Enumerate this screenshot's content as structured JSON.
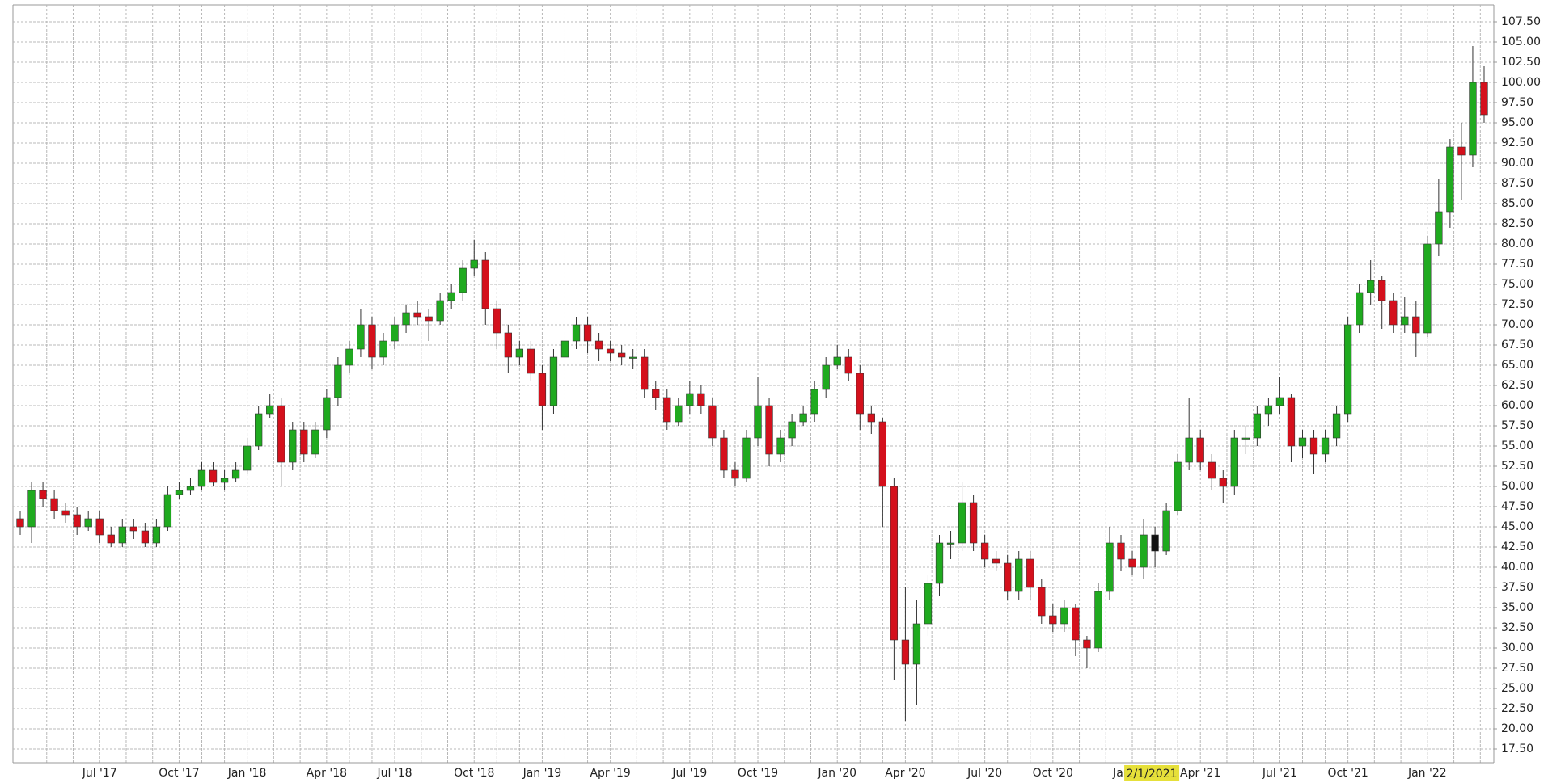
{
  "chart_data": {
    "type": "candlestick",
    "categories": [
      null,
      null,
      null,
      null,
      null,
      null,
      null,
      "Jul '17",
      null,
      null,
      null,
      null,
      null,
      null,
      "Oct '17",
      null,
      null,
      null,
      null,
      null,
      "Jan '18",
      null,
      null,
      null,
      null,
      null,
      null,
      "Apr '18",
      null,
      null,
      null,
      null,
      null,
      "Jul '18",
      null,
      null,
      null,
      null,
      null,
      null,
      "Oct '18",
      null,
      null,
      null,
      null,
      null,
      "Jan '19",
      null,
      null,
      null,
      null,
      null,
      "Apr '19",
      null,
      null,
      null,
      null,
      null,
      null,
      "Jul '19",
      null,
      null,
      null,
      null,
      null,
      "Oct '19",
      null,
      null,
      null,
      null,
      null,
      null,
      "Jan '20",
      null,
      null,
      null,
      null,
      null,
      "Apr '20",
      null,
      null,
      null,
      null,
      null,
      null,
      "Jul '20",
      null,
      null,
      null,
      null,
      null,
      "Oct '20",
      null,
      null,
      null,
      null,
      null,
      null,
      "Jan '21",
      null,
      null,
      null,
      null,
      null,
      "Apr '21",
      null,
      null,
      null,
      null,
      null,
      null,
      "Jul '21",
      null,
      null,
      null,
      null,
      null,
      "Oct '21",
      null,
      null,
      null,
      null,
      null,
      null,
      "Jan '22",
      null,
      null,
      null,
      null,
      null
    ],
    "open": [
      46,
      45,
      49.5,
      48.5,
      47,
      46.5,
      45,
      46,
      44,
      43,
      45,
      44.5,
      43,
      45,
      49,
      49.5,
      50,
      52,
      50.5,
      51,
      52,
      55,
      59,
      60,
      53,
      57,
      54,
      57,
      61,
      65,
      67,
      70,
      66,
      68,
      70,
      71.5,
      71,
      70.5,
      73,
      74,
      77,
      78,
      72,
      69,
      66,
      67,
      64,
      60,
      66,
      68,
      70,
      68,
      67,
      66.5,
      66,
      66,
      62,
      61,
      58,
      60,
      61.5,
      60,
      56,
      52,
      51,
      56,
      60,
      54,
      56,
      58,
      59,
      62,
      65,
      66,
      64,
      59,
      58,
      50,
      31,
      28,
      33,
      38,
      43,
      43,
      48,
      43,
      41,
      40.5,
      37,
      41,
      37.5,
      34,
      33,
      35,
      31,
      30,
      37,
      43,
      41,
      40,
      44,
      42,
      47,
      53,
      56,
      53,
      51,
      50,
      56,
      56,
      59,
      60,
      61,
      55,
      56,
      54,
      56,
      59,
      70,
      74,
      75.5,
      73,
      70,
      71,
      69,
      80,
      84,
      92,
      91,
      100
    ],
    "high": [
      47,
      50.5,
      50.5,
      49.5,
      48,
      47.5,
      47,
      47,
      45,
      46,
      46,
      45.5,
      46,
      50,
      50.5,
      51,
      53,
      53,
      52,
      53,
      56,
      60,
      61.5,
      61,
      58,
      58,
      58,
      62,
      66,
      68,
      72,
      71,
      69,
      71,
      72.5,
      73,
      72,
      74,
      75,
      78,
      80.5,
      79,
      73,
      70,
      68,
      68,
      65,
      67,
      69,
      71,
      71,
      69,
      68,
      67.5,
      67,
      67,
      63,
      62,
      61,
      63,
      62.5,
      61,
      57,
      53,
      57,
      63.5,
      61,
      57,
      59,
      60,
      63,
      66,
      67.5,
      67,
      65,
      60,
      58.5,
      51,
      37.5,
      36,
      39,
      44,
      44.5,
      50.5,
      49,
      44,
      42,
      41.5,
      42,
      42,
      38.5,
      35.5,
      36,
      35.5,
      31.5,
      38,
      45,
      44,
      42,
      46,
      45,
      48,
      54,
      61,
      57,
      54,
      52,
      57,
      57.5,
      60,
      61,
      63.5,
      61.5,
      57,
      57,
      57,
      60,
      71,
      75,
      78,
      76,
      74,
      73.5,
      73,
      81,
      88,
      93,
      95,
      104.5,
      102
    ],
    "low": [
      44,
      43,
      47.5,
      46,
      45.5,
      44,
      44.5,
      43,
      42.5,
      42.5,
      43.5,
      42.5,
      42.5,
      44.5,
      48.5,
      49,
      49.5,
      50,
      49.5,
      50.5,
      51.5,
      54.5,
      58.5,
      50,
      52,
      53,
      53.5,
      56,
      60,
      64,
      66,
      64.5,
      65,
      67,
      69,
      70,
      68,
      70,
      72,
      73,
      76,
      70,
      67,
      64,
      65,
      63,
      57,
      59,
      65,
      67,
      66.5,
      65.5,
      65.5,
      65,
      64.5,
      61,
      59.5,
      57,
      57.5,
      59,
      59,
      55,
      51,
      50,
      50.5,
      55,
      52.5,
      53,
      55,
      57.5,
      58,
      61,
      64.5,
      63,
      57,
      56.5,
      45,
      26,
      21,
      23,
      31.5,
      36.5,
      41,
      42,
      42,
      40,
      39.5,
      36,
      36,
      36,
      33,
      32,
      32,
      29,
      27.5,
      29.5,
      36,
      39.5,
      39,
      38.5,
      40,
      41.5,
      46.5,
      52,
      52,
      49.5,
      48,
      49,
      54,
      55,
      57.5,
      59,
      53,
      53.5,
      51.5,
      53,
      55,
      58,
      69,
      72.5,
      69.5,
      69,
      69,
      66,
      68.5,
      78.5,
      82,
      85.5,
      89.5,
      95
    ],
    "close": [
      45,
      49.5,
      48.5,
      47,
      46.5,
      45,
      46,
      44,
      43,
      45,
      44.5,
      43,
      45,
      49,
      49.5,
      50,
      52,
      50.5,
      51,
      52,
      55,
      59,
      60,
      53,
      57,
      54,
      57,
      61,
      65,
      67,
      70,
      66,
      68,
      70,
      71.5,
      71,
      70.5,
      73,
      74,
      77,
      78,
      72,
      69,
      66,
      67,
      64,
      60,
      66,
      68,
      70,
      68,
      67,
      66.5,
      66,
      66,
      62,
      61,
      58,
      60,
      61.5,
      60,
      56,
      52,
      51,
      56,
      60,
      54,
      56,
      58,
      59,
      62,
      65,
      66,
      64,
      59,
      58,
      50,
      31,
      28,
      33,
      38,
      43,
      43,
      48,
      43,
      41,
      40.5,
      37,
      41,
      37.5,
      34,
      33,
      35,
      31,
      30,
      37,
      43,
      41,
      40,
      44,
      42,
      47,
      53,
      56,
      53,
      51,
      50,
      56,
      56,
      59,
      60,
      61,
      55,
      56,
      54,
      56,
      59,
      70,
      74,
      75.5,
      73,
      70,
      71,
      69,
      80,
      84,
      92,
      91,
      100,
      96
    ],
    "up_color": "#1faa1f",
    "down_color": "#d4101c",
    "ylim": [
      15.8,
      109.6
    ],
    "yticks": [
      {
        "value": 17.5,
        "label": "17.50"
      },
      {
        "value": 20,
        "label": "20.00"
      },
      {
        "value": 22.5,
        "label": "22.50"
      },
      {
        "value": 25,
        "label": "25.00"
      },
      {
        "value": 27.5,
        "label": "27.50"
      },
      {
        "value": 30,
        "label": "30.00"
      },
      {
        "value": 32.5,
        "label": "32.50"
      },
      {
        "value": 35,
        "label": "35.00"
      },
      {
        "value": 37.5,
        "label": "37.50"
      },
      {
        "value": 40,
        "label": "40.00"
      },
      {
        "value": 42.5,
        "label": "42.50"
      },
      {
        "value": 45,
        "label": "45.00"
      },
      {
        "value": 47.5,
        "label": "47.50"
      },
      {
        "value": 50,
        "label": "50.00"
      },
      {
        "value": 52.5,
        "label": "52.50"
      },
      {
        "value": 55,
        "label": "55.00"
      },
      {
        "value": 57.5,
        "label": "57.50"
      },
      {
        "value": 60,
        "label": "60.00"
      },
      {
        "value": 62.5,
        "label": "62.50"
      },
      {
        "value": 65,
        "label": "65.00"
      },
      {
        "value": 67.5,
        "label": "67.50"
      },
      {
        "value": 70,
        "label": "70.00"
      },
      {
        "value": 72.5,
        "label": "72.50"
      },
      {
        "value": 75,
        "label": "75.00"
      },
      {
        "value": 77.5,
        "label": "77.50"
      },
      {
        "value": 80,
        "label": "80.00"
      },
      {
        "value": 82.5,
        "label": "82.50"
      },
      {
        "value": 85,
        "label": "85.00"
      },
      {
        "value": 87.5,
        "label": "87.50"
      },
      {
        "value": 90,
        "label": "90.00"
      },
      {
        "value": 92.5,
        "label": "92.50"
      },
      {
        "value": 95,
        "label": "95.00"
      },
      {
        "value": 97.5,
        "label": "97.50"
      },
      {
        "value": 100,
        "label": "100.00"
      },
      {
        "value": 102.5,
        "label": "102.50"
      },
      {
        "value": 105,
        "label": "105.00"
      },
      {
        "value": 107.5,
        "label": "107.50"
      }
    ],
    "grid": true,
    "cursor_label": "2/1/2021"
  }
}
